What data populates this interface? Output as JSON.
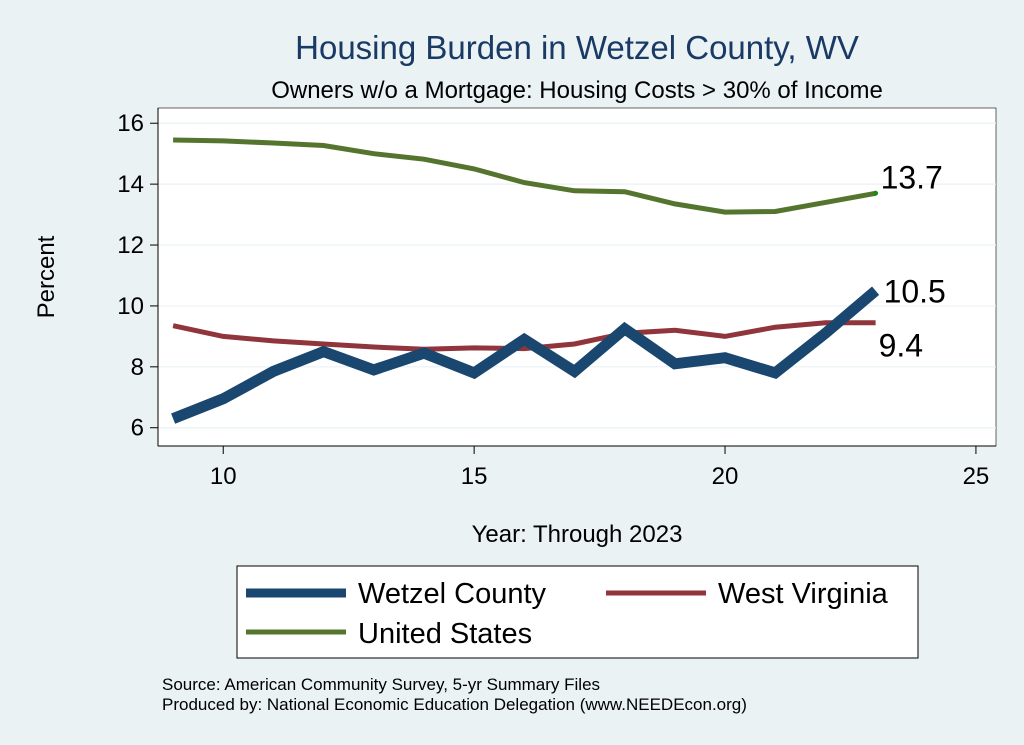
{
  "chart_data": {
    "type": "line",
    "title": "Housing Burden in Wetzel County, WV",
    "subtitle": "Owners w/o a Mortgage: Housing Costs > 30% of Income",
    "xlabel": "Year: Through 2023",
    "ylabel": "Percent",
    "xlim": [
      8.7,
      25.4
    ],
    "ylim": [
      5.4,
      16.5
    ],
    "xticks": [
      10,
      15,
      20,
      25
    ],
    "yticks": [
      6,
      8,
      10,
      12,
      14,
      16
    ],
    "x": [
      9,
      10,
      11,
      12,
      13,
      14,
      15,
      16,
      17,
      18,
      19,
      20,
      21,
      22,
      23
    ],
    "series": [
      {
        "name": "Wetzel County",
        "color": "#1a476f",
        "values": [
          6.3,
          6.95,
          7.85,
          8.5,
          7.9,
          8.45,
          7.8,
          8.9,
          7.85,
          9.25,
          8.1,
          8.3,
          7.8,
          9.1,
          10.5
        ],
        "end_label": "10.5"
      },
      {
        "name": "West Virginia",
        "color": "#90353b",
        "values": [
          9.35,
          9.0,
          8.85,
          8.75,
          8.65,
          8.58,
          8.62,
          8.6,
          8.75,
          9.1,
          9.2,
          9.0,
          9.3,
          9.45,
          9.45
        ],
        "end_label": "9.4"
      },
      {
        "name": "United States",
        "color": "#55752f",
        "values": [
          15.45,
          15.42,
          15.35,
          15.27,
          15.0,
          14.82,
          14.5,
          14.05,
          13.78,
          13.75,
          13.35,
          13.08,
          13.1,
          13.4,
          13.7
        ],
        "end_label": "13.7"
      }
    ],
    "legend": [
      "Wetzel County",
      "West Virginia",
      "United States"
    ],
    "grid": true,
    "legend_position": "bottom"
  },
  "notes": {
    "source": "Source: American Community Survey, 5-yr Summary Files",
    "produced_by": "Produced by: National Economic Education Delegation (www.NEEDEcon.org)"
  }
}
